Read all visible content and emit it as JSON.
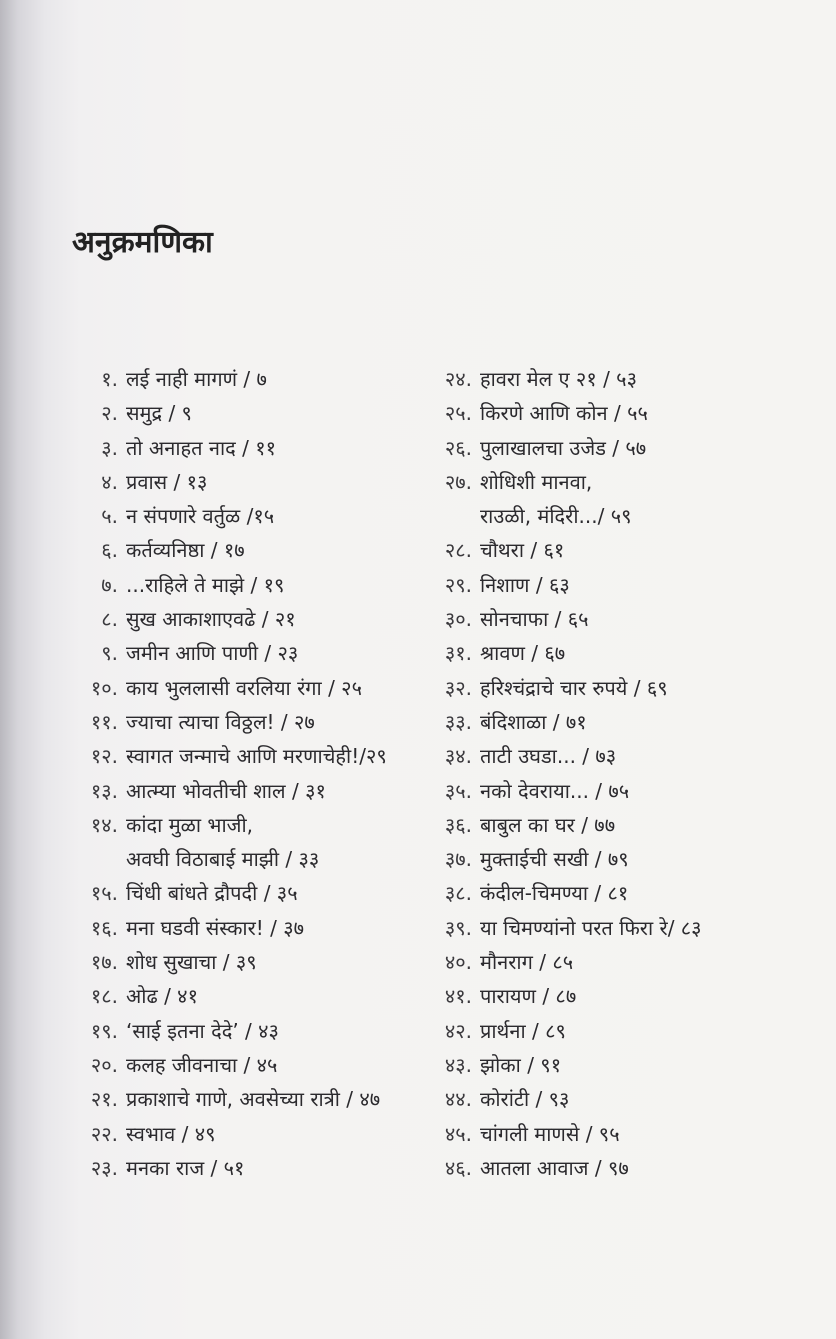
{
  "heading": "अनुक्रमणिका",
  "left_entries": [
    {
      "number": "१.",
      "lines": [
        "लई नाही मागणं / ७"
      ]
    },
    {
      "number": "२.",
      "lines": [
        "समुद्र / ९"
      ]
    },
    {
      "number": "३.",
      "lines": [
        "तो अनाहत नाद / ११"
      ]
    },
    {
      "number": "४.",
      "lines": [
        "प्रवास / १३"
      ]
    },
    {
      "number": "५.",
      "lines": [
        "न संपणारे वर्तुळ /१५"
      ]
    },
    {
      "number": "६.",
      "lines": [
        "कर्तव्यनिष्ठा / १७"
      ]
    },
    {
      "number": "७.",
      "lines": [
        "...राहिले ते माझे / १९"
      ]
    },
    {
      "number": "८.",
      "lines": [
        "सुख आकाशाएवढे / २१"
      ]
    },
    {
      "number": "९.",
      "lines": [
        "जमीन आणि पाणी / २३"
      ]
    },
    {
      "number": "१०.",
      "lines": [
        "काय भुललासी वरलिया रंगा / २५"
      ]
    },
    {
      "number": "११.",
      "lines": [
        "ज्याचा त्याचा विठ्ठल! / २७"
      ]
    },
    {
      "number": "१२.",
      "lines": [
        "स्वागत जन्माचे आणि मरणाचेही!/२९"
      ]
    },
    {
      "number": "१३.",
      "lines": [
        "आत्म्या भोवतीची शाल / ३१"
      ]
    },
    {
      "number": "१४.",
      "lines": [
        "कांदा मुळा भाजी,",
        "अवघी विठाबाई माझी / ३३"
      ]
    },
    {
      "number": "१५.",
      "lines": [
        "चिंधी बांधते द्रौपदी / ३५"
      ]
    },
    {
      "number": "१६.",
      "lines": [
        "मना घडवी संस्कार! / ३७"
      ]
    },
    {
      "number": "१७.",
      "lines": [
        "शोध सुखाचा / ३९"
      ]
    },
    {
      "number": "१८.",
      "lines": [
        "ओढ / ४१"
      ]
    },
    {
      "number": "१९.",
      "lines": [
        "‘साई इतना देदे’ / ४३"
      ]
    },
    {
      "number": "२०.",
      "lines": [
        "कलह जीवनाचा / ४५"
      ]
    },
    {
      "number": "२१.",
      "lines": [
        "प्रकाशाचे गाणे, अवसेच्या रात्री / ४७"
      ]
    },
    {
      "number": "२२.",
      "lines": [
        "स्वभाव / ४९"
      ]
    },
    {
      "number": "२३.",
      "lines": [
        "मनका राज / ५१"
      ]
    }
  ],
  "right_entries": [
    {
      "number": "२४.",
      "lines": [
        "हावरा मेल ए २१ / ५३"
      ]
    },
    {
      "number": "२५.",
      "lines": [
        "किरणे आणि कोन / ५५"
      ]
    },
    {
      "number": "२६.",
      "lines": [
        "पुलाखालचा उजेड / ५७"
      ]
    },
    {
      "number": "२७.",
      "lines": [
        "शोधिशी मानवा,",
        "राउळी, मंदिरी.../ ५९"
      ]
    },
    {
      "number": "२८.",
      "lines": [
        "चौथरा / ६१"
      ]
    },
    {
      "number": "२९.",
      "lines": [
        "निशाण  / ६३"
      ]
    },
    {
      "number": "३०.",
      "lines": [
        "सोनचाफा / ६५"
      ]
    },
    {
      "number": "३१.",
      "lines": [
        "श्रावण / ६७"
      ]
    },
    {
      "number": "३२.",
      "lines": [
        "हरिश्चंद्राचे चार रुपये / ६९"
      ]
    },
    {
      "number": "३३.",
      "lines": [
        "बंदिशाळा / ७१"
      ]
    },
    {
      "number": "३४.",
      "lines": [
        "ताटी उघडा... / ७३"
      ]
    },
    {
      "number": "३५.",
      "lines": [
        "नको देवराया... / ७५"
      ]
    },
    {
      "number": "३६.",
      "lines": [
        "बाबुल का घर / ७७"
      ]
    },
    {
      "number": "३७.",
      "lines": [
        "मुक्ताईची सखी / ७९"
      ]
    },
    {
      "number": "३८.",
      "lines": [
        "कंदील-चिमण्या / ८१"
      ]
    },
    {
      "number": "३९.",
      "lines": [
        "या चिमण्यांनो परत फिरा रे/ ८३"
      ]
    },
    {
      "number": "४०.",
      "lines": [
        "मौनराग / ८५"
      ]
    },
    {
      "number": "४१.",
      "lines": [
        "पारायण / ८७"
      ]
    },
    {
      "number": "४२.",
      "lines": [
        "प्रार्थना / ८९"
      ]
    },
    {
      "number": "४३.",
      "lines": [
        "झोका / ९१"
      ]
    },
    {
      "number": "४४.",
      "lines": [
        "कोरांटी / ९३"
      ]
    },
    {
      "number": "४५.",
      "lines": [
        "चांगली माणसे  / ९५"
      ]
    },
    {
      "number": "४६.",
      "lines": [
        "आतला आवाज / ९७"
      ]
    }
  ]
}
